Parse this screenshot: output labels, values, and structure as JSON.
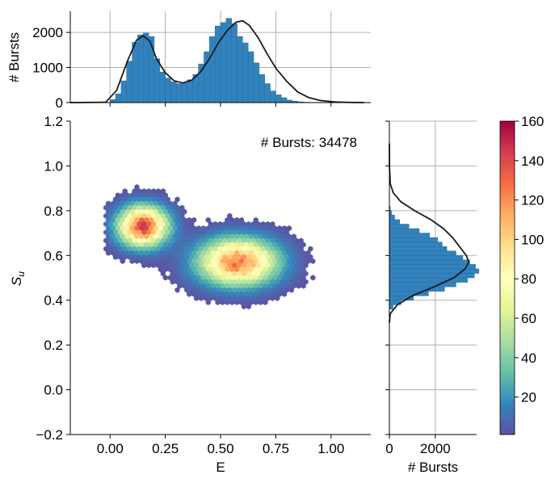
{
  "chart_data": {
    "type": "scatter",
    "subtype": "hexbin-joint-plot",
    "annotation": "# Bursts: 34478",
    "main": {
      "xlabel": "E",
      "ylabel": "S",
      "ylabel_sub": "u",
      "xlim": [
        -0.18,
        1.18
      ],
      "ylim": [
        -0.2,
        1.2
      ],
      "xticks": [
        0.0,
        0.25,
        0.5,
        0.75,
        1.0
      ],
      "xtick_labels": [
        "0.00",
        "0.25",
        "0.50",
        "0.75",
        "1.00"
      ],
      "yticks": [
        -0.2,
        0.0,
        0.2,
        0.4,
        0.6,
        0.8,
        1.0,
        1.2
      ],
      "ytick_labels": [
        "−0.2",
        "0.0",
        "0.2",
        "0.4",
        "0.6",
        "0.8",
        "1.0",
        "1.2"
      ],
      "grid": false,
      "populations": [
        {
          "e": 0.15,
          "s": 0.73,
          "sd_e": 0.075,
          "sd_s": 0.06,
          "weight": 0.33,
          "peak_count": 140
        },
        {
          "e": 0.58,
          "s": 0.57,
          "sd_e": 0.12,
          "sd_s": 0.07,
          "weight": 0.67,
          "peak_count": 125
        }
      ],
      "e_range": [
        0.0,
        1.0
      ],
      "s_range": [
        0.3,
        0.95
      ]
    },
    "top_hist": {
      "ylabel": "# Bursts",
      "ylim": [
        0,
        2600
      ],
      "yticks": [
        0,
        1000,
        2000
      ],
      "ytick_labels": [
        "0",
        "1000",
        "2000"
      ],
      "grid": true,
      "bin_width": 0.025,
      "bin_start": 0.0,
      "counts": [
        90,
        250,
        620,
        1180,
        1720,
        1930,
        1980,
        1880,
        1250,
        870,
        700,
        590,
        540,
        560,
        650,
        800,
        1100,
        1450,
        1880,
        2180,
        2280,
        2400,
        2250,
        1880,
        1700,
        1450,
        1130,
        800,
        540,
        330,
        220,
        140,
        70,
        40,
        20,
        10,
        0
      ],
      "kde": [
        [
          -0.18,
          0
        ],
        [
          -0.02,
          10
        ],
        [
          0.03,
          350
        ],
        [
          0.08,
          1200
        ],
        [
          0.12,
          1780
        ],
        [
          0.15,
          1900
        ],
        [
          0.18,
          1750
        ],
        [
          0.21,
          1250
        ],
        [
          0.25,
          850
        ],
        [
          0.29,
          620
        ],
        [
          0.33,
          560
        ],
        [
          0.37,
          640
        ],
        [
          0.41,
          880
        ],
        [
          0.45,
          1250
        ],
        [
          0.49,
          1700
        ],
        [
          0.53,
          2050
        ],
        [
          0.57,
          2290
        ],
        [
          0.6,
          2330
        ],
        [
          0.63,
          2200
        ],
        [
          0.67,
          1850
        ],
        [
          0.71,
          1400
        ],
        [
          0.75,
          980
        ],
        [
          0.8,
          600
        ],
        [
          0.85,
          300
        ],
        [
          0.9,
          140
        ],
        [
          0.95,
          60
        ],
        [
          1.02,
          15
        ],
        [
          1.1,
          3
        ],
        [
          1.15,
          0
        ]
      ]
    },
    "right_hist": {
      "xlabel": "# Bursts",
      "xlim": [
        0,
        3800
      ],
      "xticks": [
        0,
        2000
      ],
      "xtick_labels": [
        "0",
        "2000"
      ],
      "grid": true,
      "yticks": [
        -0.2,
        0.0,
        0.2,
        0.4,
        0.6,
        0.8,
        1.0,
        1.2
      ],
      "bin_height": 0.02,
      "bin_start": 0.36,
      "counts": [
        160,
        500,
        1050,
        1700,
        2400,
        2900,
        3400,
        3700,
        3900,
        3750,
        3500,
        3200,
        2900,
        2500,
        2300,
        2100,
        1750,
        1300,
        850,
        450,
        230,
        100,
        40
      ],
      "kde": [
        [
          0.3,
          0
        ],
        [
          0.34,
          40
        ],
        [
          0.38,
          350
        ],
        [
          0.42,
          1000
        ],
        [
          0.46,
          1950
        ],
        [
          0.5,
          2800
        ],
        [
          0.54,
          3300
        ],
        [
          0.57,
          3460
        ],
        [
          0.6,
          3350
        ],
        [
          0.64,
          3050
        ],
        [
          0.68,
          2750
        ],
        [
          0.72,
          2350
        ],
        [
          0.76,
          1800
        ],
        [
          0.8,
          1100
        ],
        [
          0.84,
          500
        ],
        [
          0.88,
          170
        ],
        [
          0.92,
          40
        ],
        [
          1.0,
          3
        ],
        [
          1.1,
          0
        ]
      ]
    },
    "colorbar": {
      "min": 1,
      "max": 160,
      "ticks": [
        20,
        40,
        60,
        80,
        100,
        120,
        140,
        160
      ],
      "tick_labels": [
        "20",
        "40",
        "60",
        "80",
        "100",
        "120",
        "140",
        "160"
      ],
      "colormap": "Spectral_r"
    },
    "colors": {
      "bar": "#3182bd",
      "bar_edge": "#2c6a98",
      "kde": "#1a1a1a",
      "grid": "#b0b0b0",
      "axis": "#000000"
    }
  }
}
